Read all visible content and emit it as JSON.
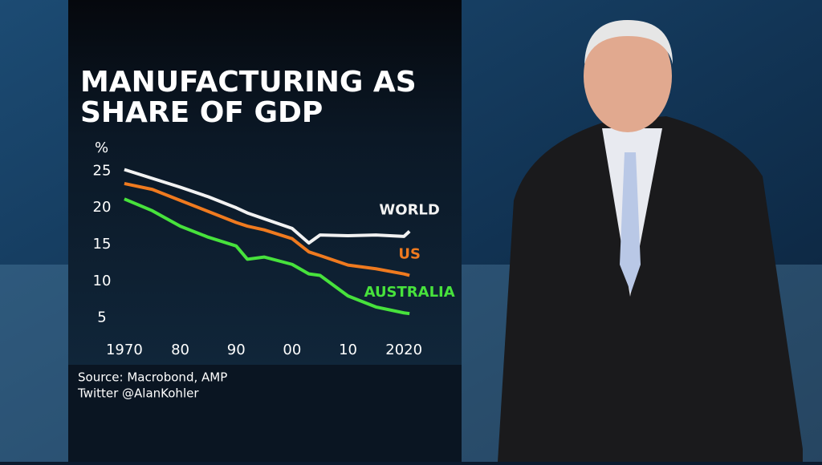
{
  "chart_data": {
    "type": "line",
    "title": [
      "MANUFACTURING AS",
      "SHARE OF GDP"
    ],
    "y_label": "%",
    "source": [
      "Source: Macrobond, AMP",
      "Twitter @AlanKohler"
    ],
    "x": [
      1970,
      1975,
      1980,
      1985,
      1990,
      1992,
      1995,
      2000,
      2003,
      2005,
      2010,
      2015,
      2020,
      2021
    ],
    "series": [
      {
        "name": "WORLD",
        "color": "#f2f2f2",
        "values": [
          25.2,
          24,
          22.8,
          21.5,
          20,
          19.3,
          18.5,
          17.2,
          15.2,
          16.3,
          16.2,
          16.3,
          16.1,
          16.8
        ]
      },
      {
        "name": "US",
        "color": "#ef7a1f",
        "values": [
          23.3,
          22.5,
          21,
          19.5,
          18,
          17.5,
          17,
          15.8,
          14,
          13.5,
          12.2,
          11.7,
          11,
          10.8
        ]
      },
      {
        "name": "AUSTRALIA",
        "color": "#47e23c",
        "values": [
          21.2,
          19.6,
          17.5,
          16,
          14.8,
          13,
          13.3,
          12.3,
          11,
          10.8,
          8,
          6.5,
          5.7,
          5.6
        ]
      }
    ],
    "xlim": [
      1967,
      2025
    ],
    "ylim": [
      3,
      27
    ],
    "xticks": [
      1970,
      {
        "value": 1980,
        "label": "80"
      },
      {
        "value": 1990,
        "label": "90"
      },
      {
        "value": 2000,
        "label": "00"
      },
      {
        "value": 2010,
        "label": "10"
      },
      2020
    ],
    "yticks": [
      5,
      10,
      15,
      20,
      25
    ]
  }
}
